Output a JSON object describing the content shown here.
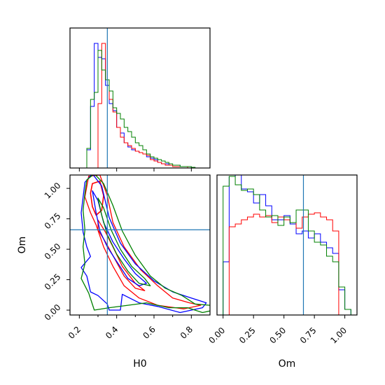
{
  "chart_data": {
    "type": "corner",
    "parameters": [
      "H0",
      "Om"
    ],
    "truths": {
      "H0": 0.35,
      "Om": 0.66
    },
    "truth_color": "#1f77b4",
    "series_colors": [
      "#0000ff",
      "#ff0000",
      "#008000"
    ],
    "hist_H0": {
      "edges": [
        0.2,
        0.22,
        0.24,
        0.26,
        0.28,
        0.3,
        0.32,
        0.34,
        0.36,
        0.38,
        0.4,
        0.42,
        0.44,
        0.46,
        0.48,
        0.5,
        0.52,
        0.54,
        0.56,
        0.58,
        0.6,
        0.62,
        0.64,
        0.66,
        0.68,
        0.7,
        0.72,
        0.74,
        0.76,
        0.78,
        0.8,
        0.82,
        0.84,
        0.86,
        0.88,
        0.9
      ],
      "series": [
        {
          "color": "#0000ff",
          "values": [
            0,
            0,
            0.13,
            0.44,
            0.89,
            0.79,
            0.78,
            0.59,
            0.46,
            0.41,
            0.29,
            0.25,
            0.18,
            0.15,
            0.13,
            0.12,
            0.11,
            0.1,
            0.08,
            0.07,
            0.06,
            0.04,
            0.03,
            0.03,
            0.02,
            0.02,
            0.02,
            0.01,
            0.01,
            0.01,
            0.005,
            0,
            0,
            0,
            0
          ]
        },
        {
          "color": "#ff0000",
          "values": [
            0,
            0,
            0,
            0,
            0,
            0.46,
            0.89,
            0.63,
            0.49,
            0.4,
            0.29,
            0.22,
            0.18,
            0.16,
            0.14,
            0.12,
            0.11,
            0.1,
            0.09,
            0.06,
            0.05,
            0.04,
            0.03,
            0.02,
            0.02,
            0.01,
            0.01,
            0.01,
            0.01,
            0,
            0,
            0,
            0,
            0,
            0
          ]
        },
        {
          "color": "#008000",
          "values": [
            0,
            0,
            0.14,
            0.49,
            0.54,
            0.84,
            0.7,
            0.63,
            0.55,
            0.43,
            0.39,
            0.35,
            0.29,
            0.26,
            0.22,
            0.18,
            0.16,
            0.13,
            0.1,
            0.08,
            0.07,
            0.06,
            0.05,
            0.04,
            0.03,
            0.02,
            0.02,
            0.01,
            0.01,
            0.01,
            0.005,
            0,
            0,
            0,
            0
          ]
        }
      ]
    },
    "hist_Om": {
      "edges": [
        0.0,
        0.05,
        0.1,
        0.15,
        0.2,
        0.25,
        0.3,
        0.35,
        0.4,
        0.45,
        0.5,
        0.55,
        0.6,
        0.65,
        0.7,
        0.75,
        0.8,
        0.85,
        0.9,
        0.95,
        1.0,
        1.05
      ],
      "series": [
        {
          "color": "#0000ff",
          "values": [
            0.38,
            0.99,
            1.0,
            0.9,
            0.88,
            0.8,
            0.86,
            0.78,
            0.68,
            0.68,
            0.71,
            0.65,
            0.58,
            0.6,
            0.55,
            0.58,
            0.52,
            0.48,
            0.44,
            0.18,
            0.04
          ]
        },
        {
          "color": "#ff0000",
          "values": [
            0,
            0.63,
            0.65,
            0.68,
            0.7,
            0.72,
            0.7,
            0.71,
            0.66,
            0.7,
            0.68,
            0.66,
            0.62,
            0.7,
            0.72,
            0.73,
            0.7,
            0.68,
            0.6,
            0,
            0
          ]
        },
        {
          "color": "#008000",
          "values": [
            0.92,
            0.99,
            0.93,
            0.89,
            0.9,
            0.86,
            0.75,
            0.7,
            0.71,
            0.64,
            0.7,
            0.66,
            0.75,
            0.75,
            0.6,
            0.52,
            0.5,
            0.42,
            0.38,
            0.2,
            0.04
          ]
        }
      ]
    },
    "contours": [
      {
        "color": "#ff0000",
        "level": "inner",
        "points": [
          [
            0.27,
            1.04
          ],
          [
            0.31,
            1.06
          ],
          [
            0.33,
            0.94
          ],
          [
            0.32,
            0.82
          ],
          [
            0.29,
            0.78
          ],
          [
            0.27,
            0.85
          ],
          [
            0.26,
            0.96
          ]
        ]
      },
      {
        "color": "#ff0000",
        "level": "outer",
        "points": [
          [
            0.23,
            0.93
          ],
          [
            0.25,
            1.1
          ],
          [
            0.31,
            1.11
          ],
          [
            0.35,
            0.94
          ],
          [
            0.38,
            0.72
          ],
          [
            0.44,
            0.52
          ],
          [
            0.53,
            0.33
          ],
          [
            0.62,
            0.2
          ],
          [
            0.7,
            0.1
          ],
          [
            0.79,
            0.06
          ],
          [
            0.85,
            0.04
          ],
          [
            0.76,
            0.01
          ],
          [
            0.62,
            0.04
          ],
          [
            0.52,
            0.1
          ],
          [
            0.44,
            0.2
          ],
          [
            0.38,
            0.36
          ],
          [
            0.33,
            0.52
          ],
          [
            0.29,
            0.7
          ],
          [
            0.26,
            0.8
          ]
        ]
      },
      {
        "color": "#ff0000",
        "level": "mid",
        "points": [
          [
            0.3,
            0.74
          ],
          [
            0.34,
            0.64
          ],
          [
            0.38,
            0.52
          ],
          [
            0.43,
            0.36
          ],
          [
            0.5,
            0.22
          ],
          [
            0.55,
            0.16
          ],
          [
            0.5,
            0.18
          ],
          [
            0.44,
            0.28
          ],
          [
            0.39,
            0.42
          ],
          [
            0.34,
            0.56
          ],
          [
            0.3,
            0.66
          ]
        ]
      },
      {
        "color": "#0000ff",
        "level": "outer",
        "points": [
          [
            0.21,
            0.8
          ],
          [
            0.23,
            1.05
          ],
          [
            0.27,
            1.12
          ],
          [
            0.32,
            1.02
          ],
          [
            0.36,
            0.76
          ],
          [
            0.42,
            0.55
          ],
          [
            0.5,
            0.38
          ],
          [
            0.6,
            0.24
          ],
          [
            0.7,
            0.15
          ],
          [
            0.8,
            0.1
          ],
          [
            0.88,
            0.06
          ],
          [
            0.86,
            0.02
          ],
          [
            0.74,
            -0.02
          ],
          [
            0.62,
            0.03
          ],
          [
            0.52,
            0.06
          ],
          [
            0.43,
            0.13
          ],
          [
            0.42,
            0.0
          ],
          [
            0.36,
            0.0
          ],
          [
            0.35,
            0.05
          ],
          [
            0.3,
            0.12
          ],
          [
            0.26,
            0.15
          ],
          [
            0.24,
            0.28
          ],
          [
            0.21,
            0.35
          ],
          [
            0.26,
            0.44
          ],
          [
            0.24,
            0.52
          ],
          [
            0.22,
            0.64
          ]
        ]
      },
      {
        "color": "#0000ff",
        "level": "mid",
        "points": [
          [
            0.27,
            0.98
          ],
          [
            0.29,
            0.8
          ],
          [
            0.31,
            0.65
          ],
          [
            0.35,
            0.52
          ],
          [
            0.4,
            0.4
          ],
          [
            0.46,
            0.26
          ],
          [
            0.52,
            0.2
          ],
          [
            0.56,
            0.22
          ],
          [
            0.5,
            0.3
          ],
          [
            0.44,
            0.42
          ],
          [
            0.38,
            0.56
          ],
          [
            0.33,
            0.72
          ],
          [
            0.3,
            0.9
          ]
        ]
      },
      {
        "color": "#008000",
        "level": "outer",
        "points": [
          [
            0.24,
            1.07
          ],
          [
            0.28,
            1.12
          ],
          [
            0.33,
            1.04
          ],
          [
            0.38,
            0.86
          ],
          [
            0.43,
            0.65
          ],
          [
            0.5,
            0.45
          ],
          [
            0.58,
            0.28
          ],
          [
            0.66,
            0.18
          ],
          [
            0.75,
            0.12
          ],
          [
            0.82,
            0.05
          ],
          [
            0.9,
            0.04
          ],
          [
            0.92,
            0.0
          ],
          [
            0.86,
            -0.02
          ],
          [
            0.78,
            0.02
          ],
          [
            0.68,
            0.02
          ],
          [
            0.56,
            0.06
          ],
          [
            0.46,
            0.04
          ],
          [
            0.36,
            0.02
          ],
          [
            0.28,
            0.0
          ],
          [
            0.25,
            0.14
          ],
          [
            0.21,
            0.26
          ],
          [
            0.23,
            0.38
          ],
          [
            0.22,
            0.52
          ],
          [
            0.23,
            0.66
          ],
          [
            0.22,
            0.82
          ],
          [
            0.23,
            0.96
          ]
        ]
      },
      {
        "color": "#008000",
        "level": "mid",
        "points": [
          [
            0.3,
            0.92
          ],
          [
            0.32,
            0.78
          ],
          [
            0.35,
            0.62
          ],
          [
            0.4,
            0.46
          ],
          [
            0.46,
            0.32
          ],
          [
            0.52,
            0.22
          ],
          [
            0.58,
            0.2
          ],
          [
            0.55,
            0.26
          ],
          [
            0.48,
            0.36
          ],
          [
            0.42,
            0.5
          ],
          [
            0.37,
            0.66
          ],
          [
            0.33,
            0.84
          ]
        ]
      }
    ],
    "axes": {
      "H0": {
        "label": "H0",
        "range": [
          0.15,
          0.9
        ],
        "ticks": [
          0.2,
          0.4,
          0.6,
          0.8
        ],
        "tick_labels": [
          "0.2",
          "0.4",
          "0.6",
          "0.8"
        ],
        "minor_ticks": [
          0.3,
          0.5,
          0.7
        ]
      },
      "Om": {
        "label": "Om",
        "range_y": [
          -0.04,
          1.11
        ],
        "ticks_y": [
          0.0,
          0.25,
          0.5,
          0.75,
          1.0
        ],
        "tick_labels_y": [
          "0.00",
          "0.25",
          "0.50",
          "0.75",
          "1.00"
        ],
        "range_x": [
          -0.05,
          1.1
        ],
        "ticks_x": [
          0.0,
          0.25,
          0.5,
          0.75,
          1.0
        ],
        "tick_labels_x": [
          "0.00",
          "0.25",
          "0.50",
          "0.75",
          "1.00"
        ]
      }
    },
    "hist_ylim": [
      0,
      1.0
    ],
    "grid": false
  }
}
